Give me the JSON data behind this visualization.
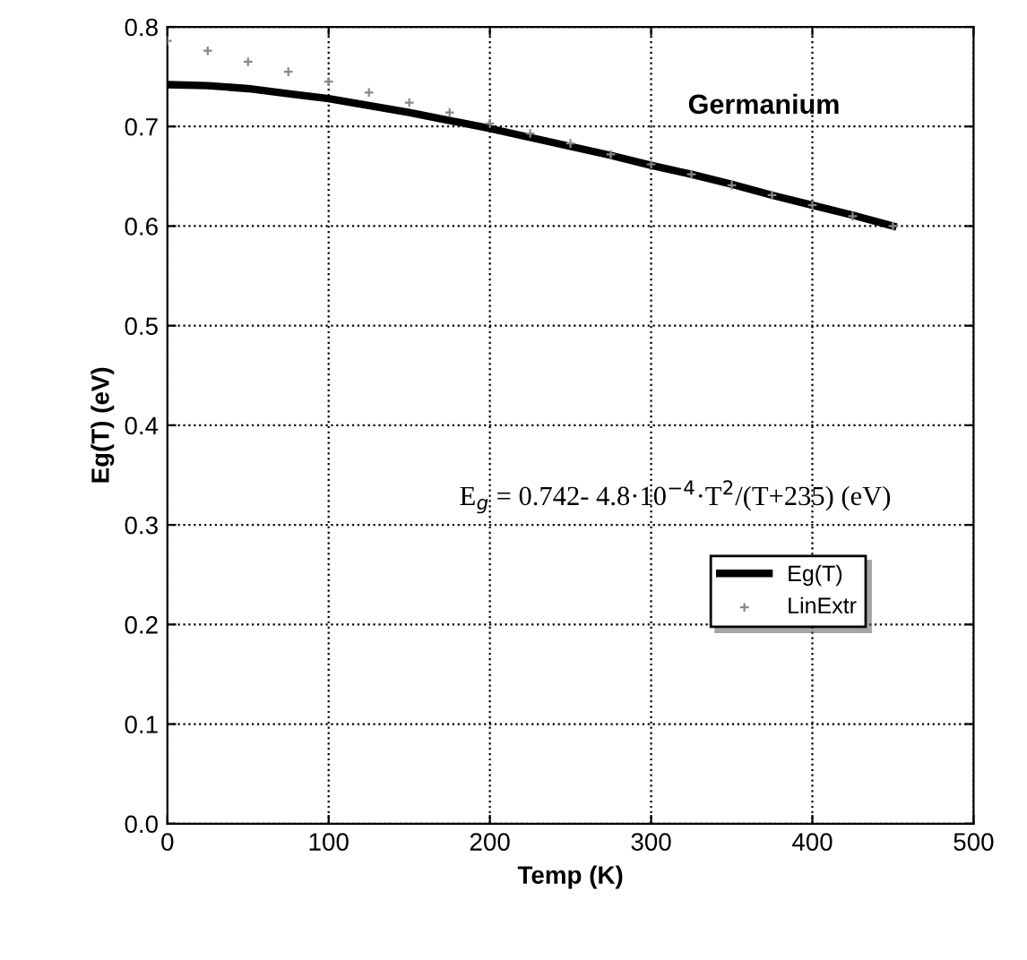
{
  "chart_data": {
    "type": "line",
    "xlabel": "Temp (K)",
    "ylabel": "Eg(T) (eV)",
    "xlim": [
      0,
      500
    ],
    "ylim": [
      0,
      0.8
    ],
    "xticks": [
      0,
      100,
      200,
      300,
      400,
      500
    ],
    "yticks": [
      {
        "value": 0,
        "label": "0.0"
      },
      {
        "value": 0.1,
        "label": "0.1"
      },
      {
        "value": 0.2,
        "label": "0.2"
      },
      {
        "value": 0.3,
        "label": "0.3"
      },
      {
        "value": 0.4,
        "label": "0.4"
      },
      {
        "value": 0.5,
        "label": "0.5"
      },
      {
        "value": 0.6,
        "label": "0.6"
      },
      {
        "value": 0.7,
        "label": "0.7"
      },
      {
        "value": 0.8,
        "label": "0.8"
      }
    ],
    "grid": true,
    "legend": "right",
    "series": [
      {
        "name": "Eg(T)",
        "color": "#000000",
        "line_style": "solid",
        "x": [
          0,
          25,
          50,
          75,
          100,
          125,
          150,
          175,
          200,
          225,
          250,
          275,
          300,
          325,
          350,
          375,
          400,
          425,
          450
        ],
        "values": [
          0.742,
          0.741,
          0.738,
          0.733,
          0.728,
          0.721,
          0.714,
          0.706,
          0.698,
          0.689,
          0.68,
          0.671,
          0.661,
          0.652,
          0.642,
          0.631,
          0.621,
          0.611,
          0.6
        ]
      },
      {
        "name": "LinExtr",
        "type": "scatter",
        "marker": "cross",
        "color": "#888888",
        "x": [
          0,
          25,
          50,
          75,
          100,
          125,
          150,
          175,
          200,
          225,
          250,
          275,
          300,
          325,
          350,
          375,
          400,
          425,
          450
        ],
        "values": [
          0.786,
          0.776,
          0.765,
          0.755,
          0.745,
          0.734,
          0.724,
          0.714,
          0.703,
          0.693,
          0.683,
          0.672,
          0.662,
          0.652,
          0.641,
          0.631,
          0.621,
          0.61,
          0.6
        ]
      }
    ],
    "annotations": [
      "Germanium",
      "E$_{g}$ = 0.742- 4.8·10$^{−4}$·T$^{2}$/(T+235) (eV)"
    ]
  }
}
